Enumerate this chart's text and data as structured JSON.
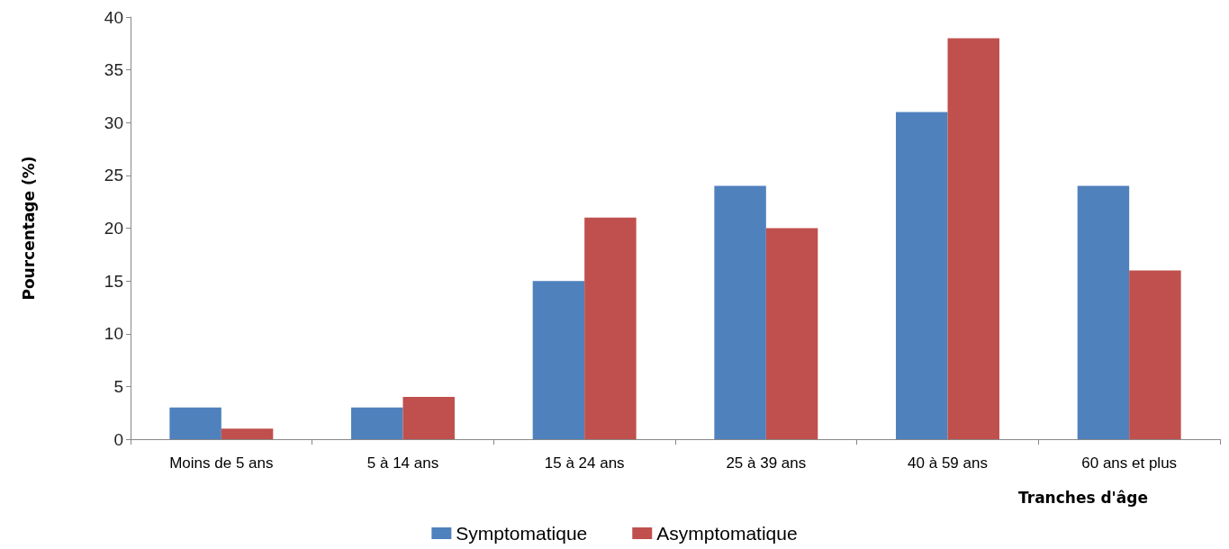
{
  "chart_data": {
    "type": "bar",
    "xlabel": "Tranches d'âge",
    "ylabel": "Pourcentage (%)",
    "categories": [
      "Moins de 5 ans",
      "5 à 14 ans",
      "15 à 24 ans",
      "25 à 39 ans",
      "40 à 59 ans",
      "60 ans et plus"
    ],
    "series": [
      {
        "name": "Symptomatique",
        "color": "#4f81bd",
        "values": [
          3,
          3,
          15,
          24,
          31,
          24
        ]
      },
      {
        "name": "Asymptomatique",
        "color": "#c0504d",
        "values": [
          1,
          4,
          21,
          20,
          38,
          16
        ]
      }
    ],
    "ylim": [
      0,
      40
    ],
    "yticks": [
      0,
      5,
      10,
      15,
      20,
      25,
      30,
      35,
      40
    ],
    "grid": false,
    "legend": "bottom"
  }
}
